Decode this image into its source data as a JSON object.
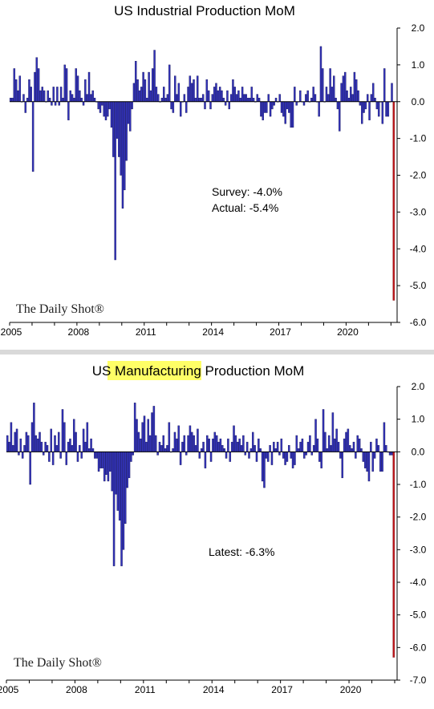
{
  "charts": [
    {
      "title_parts": [
        {
          "text": "US Industrial Production MoM",
          "highlight": false
        }
      ],
      "annotations": [
        "Survey: -4.0%",
        "Actual:  -5.4%"
      ],
      "brand": "The Daily Shot®",
      "x_tick_labels": [
        "2005",
        "2008",
        "2011",
        "2014",
        "2017",
        "2020"
      ],
      "y_tick_labels": [
        "2.0",
        "1.0",
        "0.0",
        "-1.0",
        "-2.0",
        "-3.0",
        "-4.0",
        "-5.0",
        "-6.0"
      ]
    },
    {
      "title_parts": [
        {
          "text": "US ",
          "highlight": false
        },
        {
          "text": "Manufacturing",
          "highlight": true
        },
        {
          "text": " Production MoM",
          "highlight": false
        }
      ],
      "annotations": [
        "Latest:  -6.3%"
      ],
      "brand": "The Daily Shot®",
      "x_tick_labels": [
        "2005",
        "2008",
        "2011",
        "2014",
        "2017",
        "2020"
      ],
      "y_tick_labels": [
        "2.0",
        "1.0",
        "0.0",
        "-1.0",
        "-2.0",
        "-3.0",
        "-4.0",
        "-5.0",
        "-6.0",
        "-7.0"
      ]
    }
  ],
  "colors": {
    "bar": "#3333bb",
    "bar_outline": "#111155",
    "latest_bar": "#c0151b",
    "highlight": "#ffff66"
  },
  "chart_data": [
    {
      "type": "bar",
      "title": "US Industrial Production MoM",
      "x_start": "2005-01",
      "x_step": "month",
      "x_ticks": [
        2005,
        2008,
        2011,
        2014,
        2017,
        2020
      ],
      "ylim": [
        -6.0,
        2.0
      ],
      "ylabel": "",
      "xlabel": "",
      "grid": false,
      "values": [
        0.1,
        0.1,
        0.9,
        0.6,
        0.3,
        0.7,
        0.0,
        0.2,
        -0.3,
        0.1,
        0.6,
        0.4,
        -1.9,
        0.8,
        1.2,
        0.9,
        0.3,
        0.4,
        0.3,
        0.0,
        0.3,
        0.1,
        -0.1,
        0.4,
        -0.1,
        0.4,
        -0.1,
        0.4,
        0.1,
        1.0,
        0.9,
        -0.5,
        0.3,
        0.2,
        0.1,
        0.9,
        0.7,
        0.3,
        0.1,
        -0.1,
        0.6,
        0.2,
        0.8,
        0.2,
        0.3,
        0.1,
        0.0,
        -0.2,
        -0.3,
        -0.1,
        -0.4,
        -0.5,
        -0.4,
        -0.2,
        -0.7,
        -1.5,
        -4.3,
        -1.0,
        -1.5,
        -2.0,
        -2.9,
        -2.4,
        -1.6,
        -0.6,
        -0.8,
        -0.2,
        0.5,
        1.1,
        0.6,
        0.3,
        0.4,
        0.8,
        0.6,
        0.1,
        0.8,
        0.3,
        0.9,
        1.4,
        0.4,
        0.2,
        0.0,
        0.1,
        0.4,
        0.1,
        0.2,
        1.0,
        -0.2,
        -0.3,
        0.7,
        0.2,
        0.5,
        -0.4,
        0.0,
        0.2,
        -0.3,
        0.4,
        0.7,
        0.5,
        0.6,
        0.1,
        0.7,
        0.1,
        0.1,
        0.2,
        -0.2,
        0.6,
        0.3,
        -0.2,
        0.2,
        0.4,
        0.5,
        0.3,
        0.4,
        0.3,
        0.1,
        -0.1,
        0.3,
        -0.2,
        0.2,
        0.6,
        0.4,
        0.2,
        0.3,
        0.1,
        0.4,
        0.2,
        0.2,
        0.1,
        0.1,
        0.4,
        0.1,
        0.0,
        0.2,
        0.1,
        -0.4,
        -0.5,
        -0.3,
        -0.3,
        0.2,
        -0.4,
        -0.2,
        -0.1,
        0.1,
        0.0,
        0.2,
        -0.3,
        -0.4,
        -0.6,
        -0.2,
        -0.3,
        -0.7,
        -0.7,
        0.4,
        -0.1,
        0.0,
        0.3,
        0.0,
        -0.1,
        0.2,
        0.3,
        0.0,
        0.1,
        0.4,
        0.2,
        0.0,
        -0.4,
        1.5,
        0.9,
        0.0,
        0.4,
        0.2,
        0.9,
        0.4,
        0.7,
        0.1,
        -0.2,
        -0.8,
        0.5,
        0.7,
        0.8,
        0.3,
        0.1,
        0.4,
        0.2,
        0.8,
        0.6,
        0.3,
        -0.1,
        -0.6,
        -0.3,
        -0.2,
        0.2,
        -0.5,
        0.2,
        0.5,
        0.1,
        -0.2,
        -0.4,
        0.0,
        -0.6,
        0.9,
        -0.4,
        -0.4,
        0.0,
        0.5,
        -5.4
      ]
    },
    {
      "type": "bar",
      "title": "US Manufacturing Production MoM",
      "x_start": "2005-01",
      "x_step": "month",
      "x_ticks": [
        2005,
        2008,
        2011,
        2014,
        2017,
        2020
      ],
      "ylim": [
        -7.0,
        2.0
      ],
      "ylabel": "",
      "xlabel": "",
      "grid": false,
      "values": [
        0.5,
        0.3,
        0.9,
        0.2,
        0.6,
        0.7,
        -0.1,
        0.4,
        -0.2,
        0.2,
        0.6,
        0.5,
        -1.0,
        0.9,
        1.5,
        0.5,
        0.4,
        0.6,
        0.3,
        -0.1,
        0.3,
        0.2,
        -0.3,
        0.7,
        -0.4,
        0.5,
        0.2,
        0.6,
        -0.2,
        1.3,
        0.9,
        -0.4,
        0.3,
        0.4,
        0.2,
        1.0,
        0.6,
        -0.3,
        0.2,
        -0.2,
        0.7,
        0.3,
        0.9,
        0.1,
        0.4,
        0.1,
        -0.2,
        -0.2,
        -0.6,
        -0.5,
        -0.5,
        -0.9,
        -0.7,
        -0.9,
        -0.6,
        -1.2,
        -3.5,
        -1.3,
        -1.8,
        -2.1,
        -3.5,
        -3.0,
        -2.2,
        -1.1,
        -0.8,
        -0.3,
        -0.1,
        1.5,
        1.0,
        0.6,
        0.4,
        0.9,
        1.1,
        0.3,
        1.0,
        0.5,
        1.2,
        1.4,
        0.5,
        -0.1,
        0.3,
        0.2,
        0.5,
        0.1,
        0.2,
        0.9,
        0.0,
        0.1,
        0.6,
        0.4,
        0.8,
        -0.4,
        0.3,
        0.5,
        -0.1,
        0.5,
        0.8,
        0.6,
        0.5,
        0.2,
        0.7,
        -0.2,
        0.1,
        0.3,
        -0.5,
        0.5,
        0.4,
        -0.3,
        0.4,
        0.6,
        0.5,
        0.3,
        0.4,
        0.2,
        0.1,
        -0.2,
        0.4,
        -0.3,
        0.3,
        0.8,
        0.5,
        0.3,
        0.4,
        0.2,
        0.5,
        -0.1,
        0.3,
        -0.2,
        0.1,
        0.6,
        0.2,
        -0.3,
        0.4,
        0.1,
        -0.9,
        -1.1,
        -0.2,
        -0.3,
        0.2,
        -0.4,
        0.3,
        0.1,
        0.3,
        -0.1,
        0.4,
        -0.2,
        -0.4,
        -0.3,
        0.2,
        -0.2,
        -0.5,
        -0.4,
        0.5,
        0.1,
        0.3,
        0.4,
        -0.2,
        -0.1,
        0.3,
        0.5,
        -0.1,
        0.2,
        1.0,
        0.4,
        -0.3,
        -0.5,
        1.3,
        0.6,
        0.1,
        0.5,
        0.2,
        1.2,
        0.4,
        0.7,
        0.3,
        -0.2,
        -0.8,
        0.4,
        0.6,
        0.7,
        0.2,
        0.1,
        0.3,
        -0.2,
        0.5,
        0.4,
        0.1,
        -0.3,
        -0.5,
        -0.6,
        -0.9,
        0.3,
        -0.6,
        -0.2,
        0.4,
        0.2,
        -0.6,
        -0.6,
        0.9,
        0.2,
        0.0,
        -0.1,
        -0.1,
        -6.3
      ]
    }
  ]
}
